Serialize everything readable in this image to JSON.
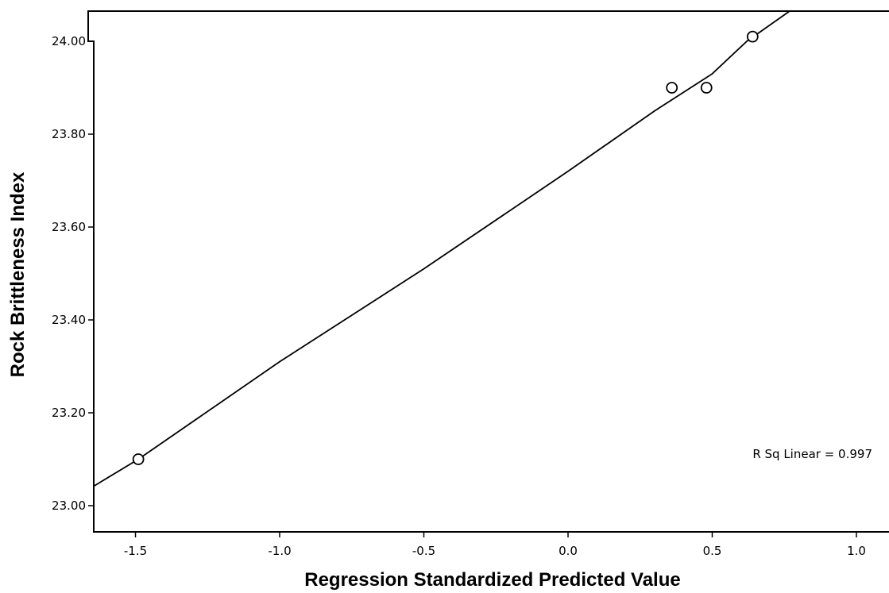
{
  "chart_data": {
    "type": "scatter",
    "xlabel": "Regression Standardized Predicted Value",
    "ylabel": "Rock Brittleness Index",
    "xlim": [
      -1.65,
      1.1
    ],
    "ylim": [
      22.94,
      24.06
    ],
    "x_ticks": [
      -1.5,
      -1.0,
      -0.5,
      0.0,
      0.5,
      1.0
    ],
    "x_tick_labels": [
      "-1.5",
      "-1.0",
      "-0.5",
      "0.0",
      "0.5",
      "1.0"
    ],
    "y_ticks": [
      23.0,
      23.2,
      23.4,
      23.6,
      23.8,
      24.0
    ],
    "y_tick_labels": [
      "23.00",
      "23.20",
      "23.40",
      "23.60",
      "23.80",
      "24.00"
    ],
    "points": [
      {
        "x": -1.49,
        "y": 23.1
      },
      {
        "x": 0.36,
        "y": 23.9
      },
      {
        "x": 0.48,
        "y": 23.9
      },
      {
        "x": 0.64,
        "y": 24.01
      }
    ],
    "fit_line": [
      {
        "x": -1.65,
        "y": 23.04
      },
      {
        "x": -1.49,
        "y": 23.1
      },
      {
        "x": -1.0,
        "y": 23.31
      },
      {
        "x": -0.5,
        "y": 23.51
      },
      {
        "x": 0.0,
        "y": 23.72
      },
      {
        "x": 0.3,
        "y": 23.85
      },
      {
        "x": 0.5,
        "y": 23.93
      },
      {
        "x": 0.62,
        "y": 24.0
      },
      {
        "x": 0.78,
        "y": 24.07
      }
    ],
    "annotation": "R Sq Linear = 0.997",
    "grid": false,
    "legend": "none"
  }
}
